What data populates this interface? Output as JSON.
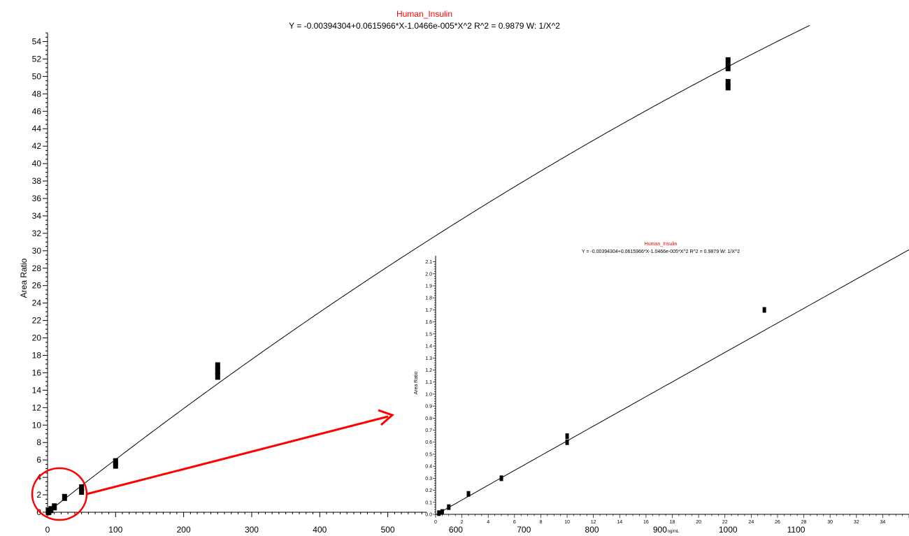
{
  "colors": {
    "title": "#ff0000",
    "curve": "#000000",
    "annotation": "#ff0000"
  },
  "chart_data": [
    {
      "type": "scatter",
      "title": "Human_Insulin",
      "subtitle": "Y = -0.00394304+0.0615966*X-1.0466e-005*X^2   R^2 = 0.9879   W: 1/X^2",
      "xlabel": "",
      "ylabel": "Area Ratio",
      "xlim": [
        0,
        1120
      ],
      "ylim": [
        0,
        55
      ],
      "x_ticks": [
        0,
        100,
        200,
        300,
        400,
        500,
        600,
        700,
        800,
        900,
        1000,
        1100
      ],
      "y_ticks": [
        0,
        2,
        4,
        6,
        8,
        10,
        12,
        14,
        16,
        18,
        20,
        22,
        24,
        26,
        28,
        30,
        32,
        34,
        36,
        38,
        40,
        42,
        44,
        46,
        48,
        50,
        52,
        54
      ],
      "fit": {
        "intercept": -0.00394304,
        "b1": 0.0615966,
        "b2": -1.0466e-05
      },
      "points": [
        {
          "x": 1,
          "y": 0.06
        },
        {
          "x": 2,
          "y": 0.1
        },
        {
          "x": 5,
          "y": 0.3
        },
        {
          "x": 10,
          "y": 0.62
        },
        {
          "x": 25,
          "y": 1.7
        },
        {
          "x": 50,
          "y": 2.4
        },
        {
          "x": 50,
          "y": 2.8
        },
        {
          "x": 100,
          "y": 5.4
        },
        {
          "x": 100,
          "y": 5.8
        },
        {
          "x": 250,
          "y": 15.6
        },
        {
          "x": 250,
          "y": 16.2
        },
        {
          "x": 250,
          "y": 16.8
        },
        {
          "x": 1000,
          "y": 48.8
        },
        {
          "x": 1000,
          "y": 49.3
        },
        {
          "x": 1000,
          "y": 51
        },
        {
          "x": 1000,
          "y": 51.8
        }
      ]
    },
    {
      "type": "scatter",
      "title": "Human_Insulin",
      "subtitle": "Y = -0.00394304+0.0615966*X-1.0466e-005*X^2   R^2 = 0.9879   W: 1/X^2",
      "xlabel": "ng/mL",
      "ylabel": "Area Ratio",
      "xlim": [
        0,
        36
      ],
      "ylim": [
        0,
        2.15
      ],
      "x_ticks": [
        0,
        2,
        4,
        6,
        8,
        10,
        12,
        14,
        16,
        18,
        20,
        22,
        24,
        26,
        28,
        30,
        32,
        34
      ],
      "y_ticks": [
        0.0,
        0.1,
        0.2,
        0.3,
        0.4,
        0.5,
        0.6,
        0.7,
        0.8,
        0.9,
        1.0,
        1.1,
        1.2,
        1.3,
        1.4,
        1.5,
        1.6,
        1.7,
        1.8,
        1.9,
        2.0,
        2.1
      ],
      "points": [
        {
          "x": 0.25,
          "y": 0.01
        },
        {
          "x": 0.5,
          "y": 0.02
        },
        {
          "x": 1,
          "y": 0.06
        },
        {
          "x": 2.5,
          "y": 0.17
        },
        {
          "x": 5,
          "y": 0.3
        },
        {
          "x": 10,
          "y": 0.6
        },
        {
          "x": 10,
          "y": 0.65
        },
        {
          "x": 25,
          "y": 1.7
        }
      ]
    }
  ]
}
